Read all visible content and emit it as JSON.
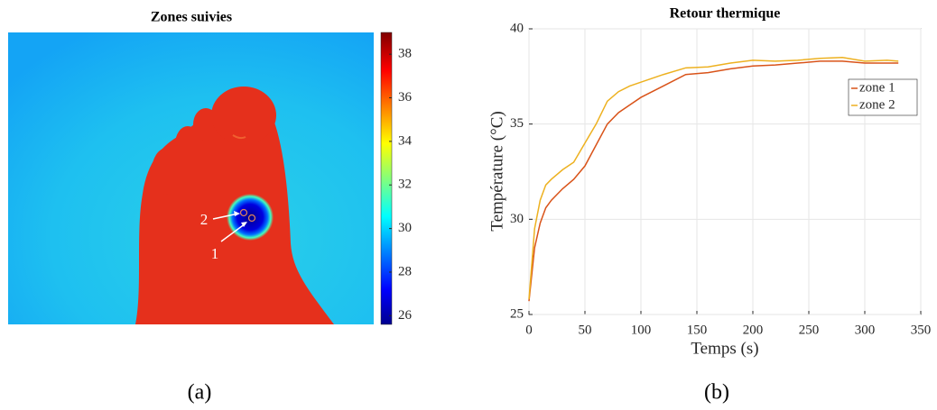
{
  "chart_data": [
    {
      "type": "thermal-image",
      "title": "Zones suivies",
      "caption": "(a)",
      "colorbar_lim": [
        25.6,
        39
      ],
      "colorbar_ticks": [
        26,
        28,
        30,
        32,
        34,
        36,
        38
      ],
      "annotations": [
        "1",
        "2"
      ]
    },
    {
      "type": "line",
      "title": "Retour thermique",
      "caption": "(b)",
      "x_label": "Temps (s)",
      "y_label": "Température (°C)",
      "xlim": [
        0,
        350
      ],
      "ylim": [
        25,
        40
      ],
      "xticks": [
        0,
        50,
        100,
        150,
        200,
        250,
        300,
        350
      ],
      "yticks": [
        25,
        30,
        35,
        40
      ],
      "grid": true,
      "legend": "upper right",
      "x": [
        0,
        5,
        10,
        15,
        20,
        30,
        40,
        50,
        60,
        70,
        80,
        90,
        100,
        120,
        140,
        160,
        180,
        200,
        220,
        240,
        260,
        280,
        300,
        320,
        330
      ],
      "series": [
        {
          "name": "zone 1",
          "color": "#d95319",
          "values": [
            25.7,
            28.5,
            29.8,
            30.6,
            31.0,
            31.6,
            32.1,
            32.8,
            33.9,
            35.0,
            35.6,
            36.0,
            36.4,
            37.0,
            37.6,
            37.7,
            37.9,
            38.05,
            38.1,
            38.2,
            38.3,
            38.3,
            38.2,
            38.2,
            38.2
          ]
        },
        {
          "name": "zone 2",
          "color": "#edb120",
          "values": [
            25.8,
            29.5,
            31.0,
            31.8,
            32.1,
            32.6,
            33.0,
            34.0,
            35.0,
            36.2,
            36.7,
            37.0,
            37.2,
            37.6,
            37.95,
            38.0,
            38.2,
            38.35,
            38.3,
            38.35,
            38.45,
            38.5,
            38.3,
            38.35,
            38.3
          ]
        }
      ]
    }
  ]
}
